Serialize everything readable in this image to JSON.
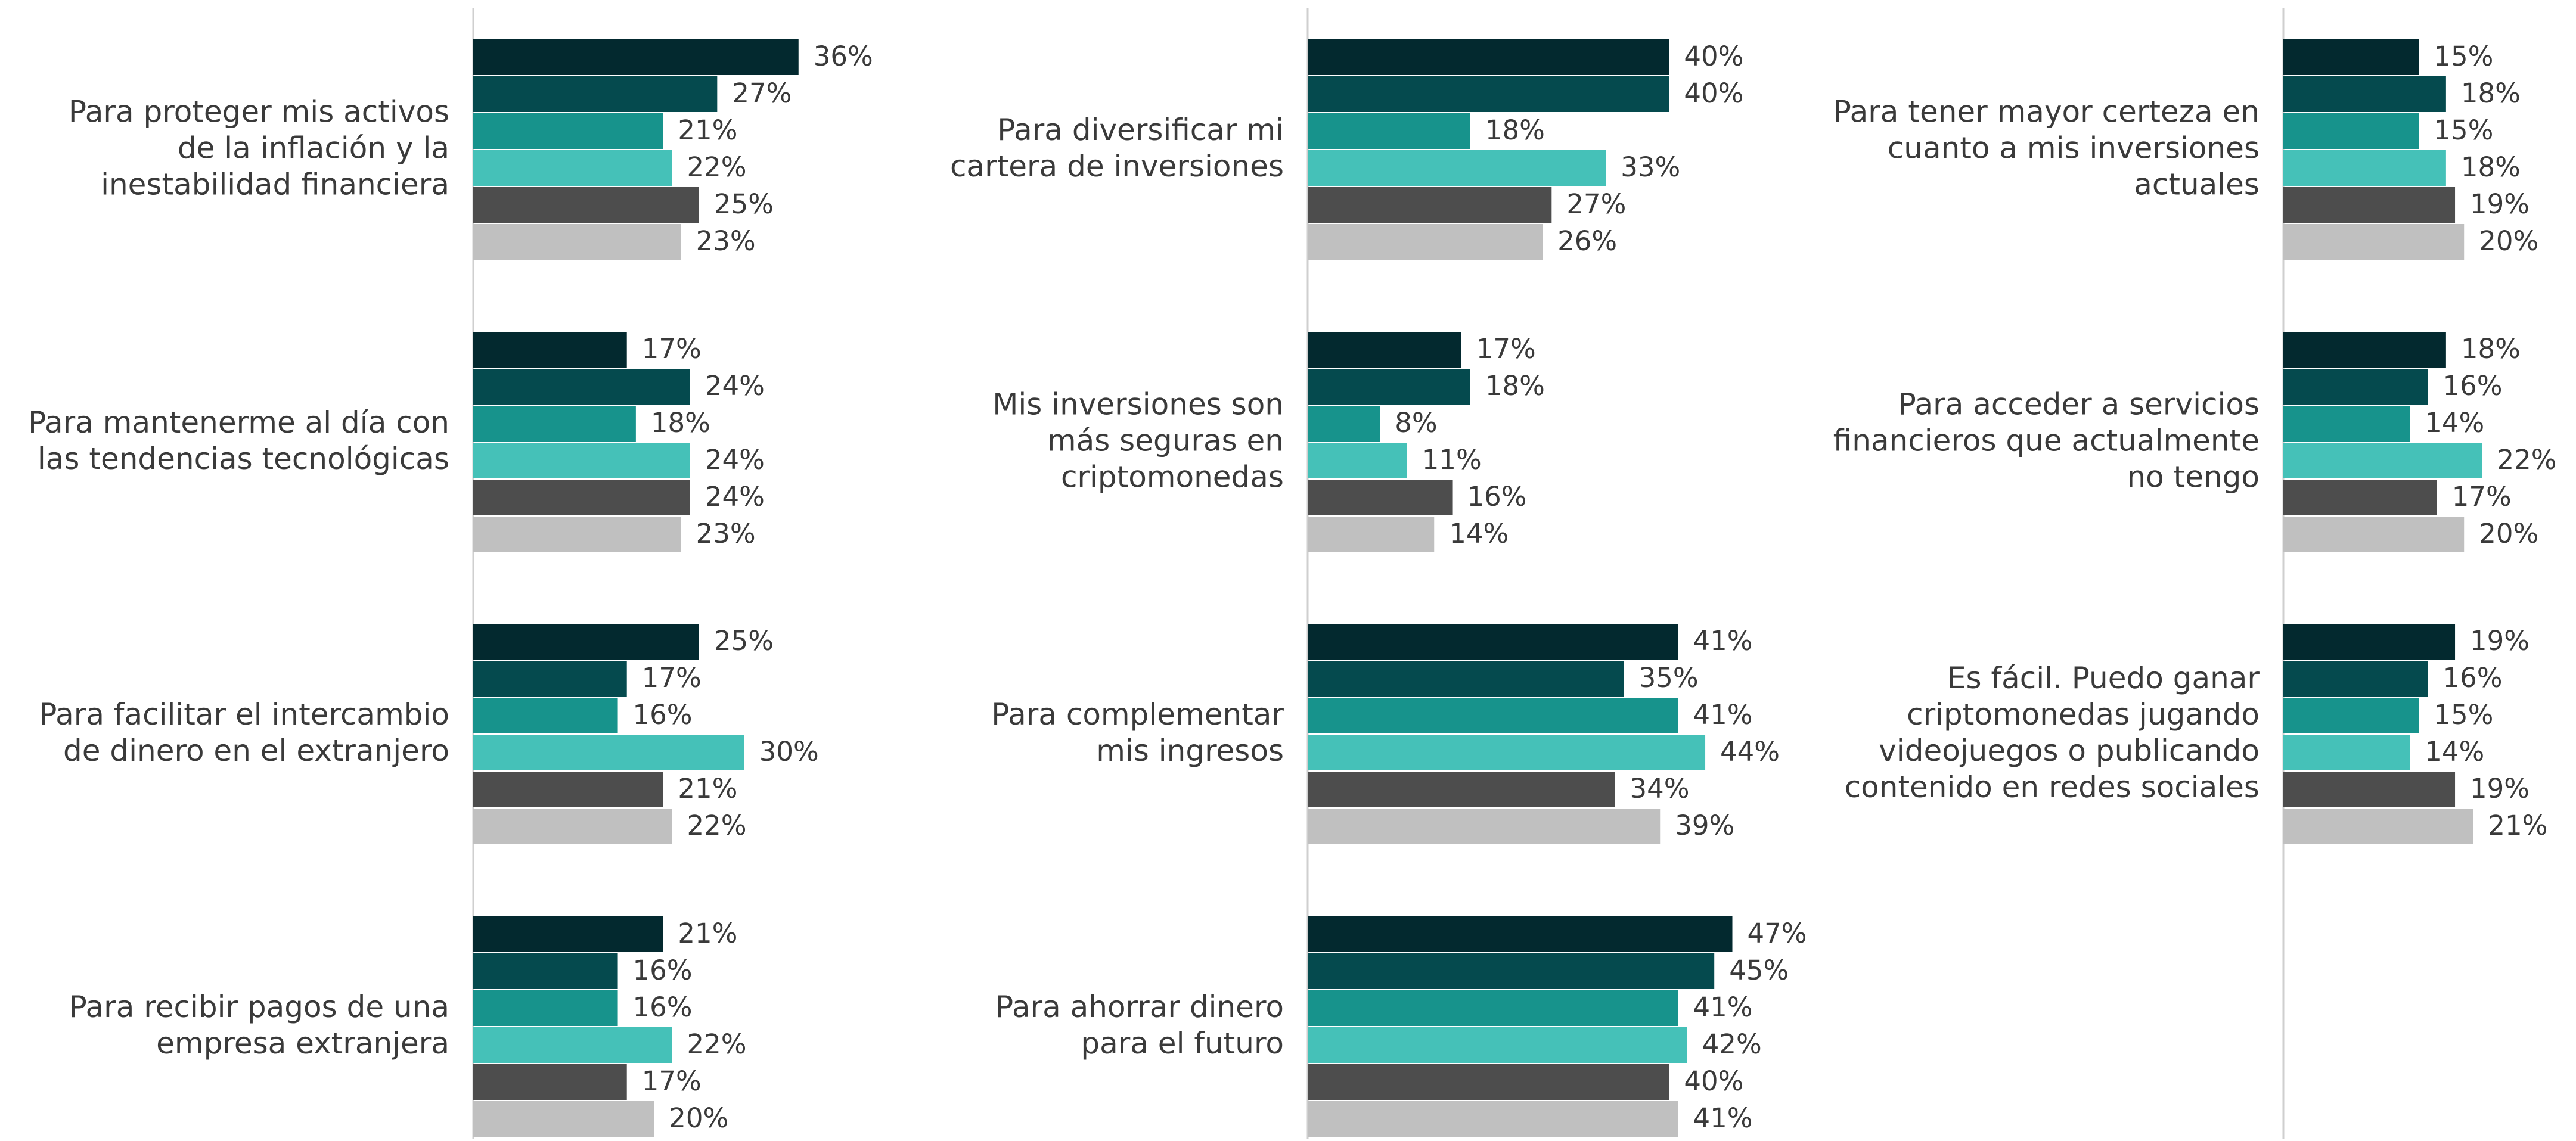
{
  "chart_data": {
    "type": "bar",
    "orientation": "horizontal",
    "categories": [
      [
        "Para proteger mis activos",
        "de la inflación y la",
        "inestabilidad financiera"
      ],
      [
        "Para mantenerme al día con",
        "las tendencias tecnológicas"
      ],
      [
        "Para facilitar el intercambio",
        "de dinero en el extranjero"
      ],
      [
        "Para recibir pagos de una",
        "empresa extranjera"
      ],
      [
        "Para diversificar mi",
        "cartera de inversiones"
      ],
      [
        "Mis inversiones son",
        "más seguras en",
        "criptomonedas"
      ],
      [
        "Para complementar",
        "mis ingresos"
      ],
      [
        "Para ahorrar dinero",
        "para el futuro"
      ],
      [
        "Para tener mayor certeza en",
        "cuanto a mis inversiones",
        "actuales"
      ],
      [
        "Para acceder a servicios",
        "financieros que actualmente",
        "no tengo"
      ],
      [
        "Es fácil. Puedo ganar",
        "criptomonedas jugando",
        "videojuegos o publicando",
        "contenido en redes sociales"
      ]
    ],
    "series": [
      {
        "color": "#03292f",
        "values": [
          36,
          17,
          25,
          21,
          40,
          17,
          41,
          47,
          15,
          18,
          19
        ],
        "value_labels": [
          "36%",
          "17%",
          "25%",
          "21%",
          "40%",
          "17%",
          "41%",
          "47%",
          "15%",
          "18%",
          "19%"
        ]
      },
      {
        "color": "#054a4e",
        "values": [
          27,
          24,
          17,
          16,
          40,
          18,
          35,
          45,
          18,
          16,
          16
        ],
        "value_labels": [
          "27%",
          "24%",
          "17%",
          "16%",
          "40%",
          "18%",
          "35%",
          "45%",
          "18%",
          "16%",
          "16%"
        ]
      },
      {
        "color": "#17938c",
        "values": [
          21,
          18,
          16,
          16,
          18,
          8,
          41,
          41,
          15,
          14,
          15
        ],
        "value_labels": [
          "21%",
          "18%",
          "16%",
          "16%",
          "18%",
          "8%",
          "41%",
          "41%",
          "15%",
          "14%",
          "15%"
        ]
      },
      {
        "color": "#45c1b8",
        "values": [
          22,
          24,
          30,
          22,
          33,
          11,
          44,
          42,
          18,
          22,
          14
        ],
        "value_labels": [
          "22%",
          "24%",
          "30%",
          "22%",
          "33%",
          "11%",
          "44%",
          "42%",
          "18%",
          "22%",
          "14%"
        ]
      },
      {
        "color": "#4d4d4d",
        "values": [
          25,
          24,
          21,
          17,
          27,
          16,
          34,
          40,
          19,
          17,
          19
        ],
        "value_labels": [
          "25%",
          "24%",
          "21%",
          "17%",
          "27%",
          "16%",
          "34%",
          "40%",
          "19%",
          "17%",
          "19%"
        ]
      },
      {
        "color": "#c0c0c0",
        "values": [
          23,
          23,
          22,
          20,
          26,
          14,
          39,
          41,
          20,
          20,
          21
        ],
        "value_labels": [
          "23%",
          "23%",
          "22%",
          "20%",
          "26%",
          "14%",
          "39%",
          "41%",
          "20%",
          "20%",
          "21%"
        ]
      }
    ],
    "xlim": [
      0,
      50
    ]
  }
}
